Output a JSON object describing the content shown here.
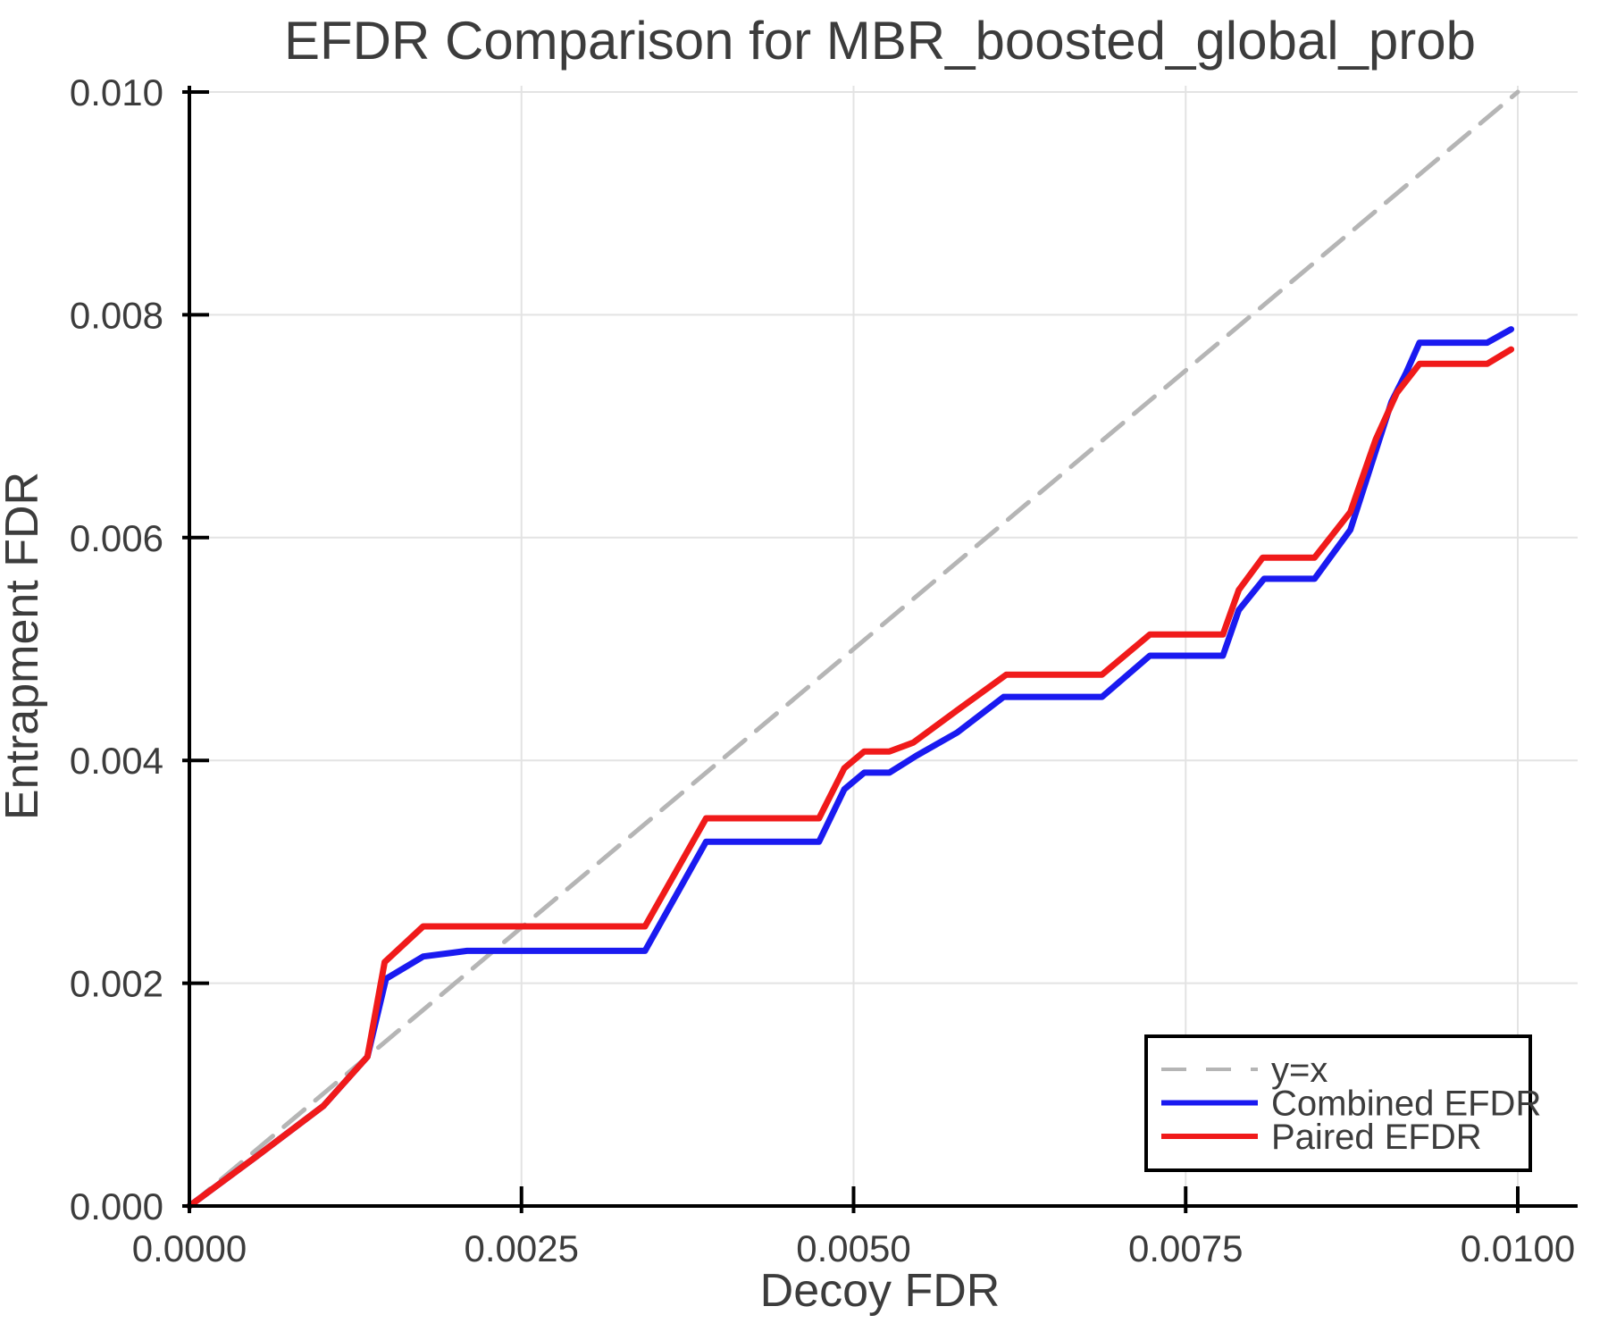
{
  "figure": {
    "background": "#ffffff",
    "text_color": "#3c3c3c",
    "axis_color": "#000000",
    "grid_color": "#e3e3e3"
  },
  "chart_data": {
    "type": "line",
    "title": "EFDR Comparison for MBR_boosted_global_prob",
    "xlabel": "Decoy FDR",
    "ylabel": "Entrapment FDR",
    "xlim": [
      0.0,
      0.01
    ],
    "ylim": [
      0.0,
      0.01
    ],
    "grid": true,
    "x_ticks": [
      {
        "value": 0.0,
        "label": "0.0000"
      },
      {
        "value": 0.0025,
        "label": "0.0025"
      },
      {
        "value": 0.005,
        "label": "0.0050"
      },
      {
        "value": 0.0075,
        "label": "0.0075"
      },
      {
        "value": 0.01,
        "label": "0.0100"
      }
    ],
    "y_ticks": [
      {
        "value": 0.0,
        "label": "0.000"
      },
      {
        "value": 0.002,
        "label": "0.002"
      },
      {
        "value": 0.004,
        "label": "0.004"
      },
      {
        "value": 0.006,
        "label": "0.006"
      },
      {
        "value": 0.008,
        "label": "0.008"
      },
      {
        "value": 0.01,
        "label": "0.010"
      }
    ],
    "legend": {
      "position": "bottom-right",
      "entries": [
        "y=x",
        "Combined EFDR",
        "Paired EFDR"
      ]
    },
    "series": [
      {
        "name": "y=x",
        "style": "dashed",
        "color": "#b5b5b5",
        "width": 5,
        "points": [
          [
            0.0,
            0.0
          ],
          [
            0.01,
            0.01
          ]
        ]
      },
      {
        "name": "Combined EFDR",
        "style": "solid",
        "color": "#1a1af0",
        "width": 7,
        "points": [
          [
            0.0,
            0.0
          ],
          [
            0.0005,
            0.00044
          ],
          [
            0.00101,
            0.0009
          ],
          [
            0.00134,
            0.00134
          ],
          [
            0.00148,
            0.00204
          ],
          [
            0.00176,
            0.00224
          ],
          [
            0.00209,
            0.00229
          ],
          [
            0.00343,
            0.00229
          ],
          [
            0.00389,
            0.00327
          ],
          [
            0.00474,
            0.00327
          ],
          [
            0.00493,
            0.00374
          ],
          [
            0.00508,
            0.00389
          ],
          [
            0.00527,
            0.00389
          ],
          [
            0.00547,
            0.00404
          ],
          [
            0.00578,
            0.00425
          ],
          [
            0.00613,
            0.00457
          ],
          [
            0.00687,
            0.00457
          ],
          [
            0.00723,
            0.00494
          ],
          [
            0.00778,
            0.00494
          ],
          [
            0.0079,
            0.00535
          ],
          [
            0.00809,
            0.00563
          ],
          [
            0.00847,
            0.00563
          ],
          [
            0.00874,
            0.00607
          ],
          [
            0.00905,
            0.00722
          ],
          [
            0.00916,
            0.00748
          ],
          [
            0.00926,
            0.00775
          ],
          [
            0.00977,
            0.00775
          ],
          [
            0.00995,
            0.00787
          ]
        ]
      },
      {
        "name": "Paired EFDR",
        "style": "solid",
        "color": "#f01a1a",
        "width": 7,
        "points": [
          [
            0.0,
            0.0
          ],
          [
            0.0005,
            0.00044
          ],
          [
            0.00101,
            0.0009
          ],
          [
            0.00134,
            0.00134
          ],
          [
            0.00147,
            0.00219
          ],
          [
            0.00176,
            0.00251
          ],
          [
            0.00343,
            0.00251
          ],
          [
            0.00389,
            0.00348
          ],
          [
            0.00474,
            0.00348
          ],
          [
            0.00493,
            0.00393
          ],
          [
            0.00508,
            0.00408
          ],
          [
            0.00527,
            0.00408
          ],
          [
            0.00545,
            0.00416
          ],
          [
            0.00578,
            0.00445
          ],
          [
            0.00615,
            0.00477
          ],
          [
            0.00687,
            0.00477
          ],
          [
            0.00723,
            0.00513
          ],
          [
            0.00778,
            0.00513
          ],
          [
            0.0079,
            0.00553
          ],
          [
            0.00808,
            0.00582
          ],
          [
            0.00847,
            0.00582
          ],
          [
            0.00874,
            0.00623
          ],
          [
            0.00893,
            0.00688
          ],
          [
            0.00909,
            0.0073
          ],
          [
            0.00926,
            0.00756
          ],
          [
            0.00977,
            0.00756
          ],
          [
            0.00995,
            0.00769
          ]
        ]
      }
    ]
  }
}
